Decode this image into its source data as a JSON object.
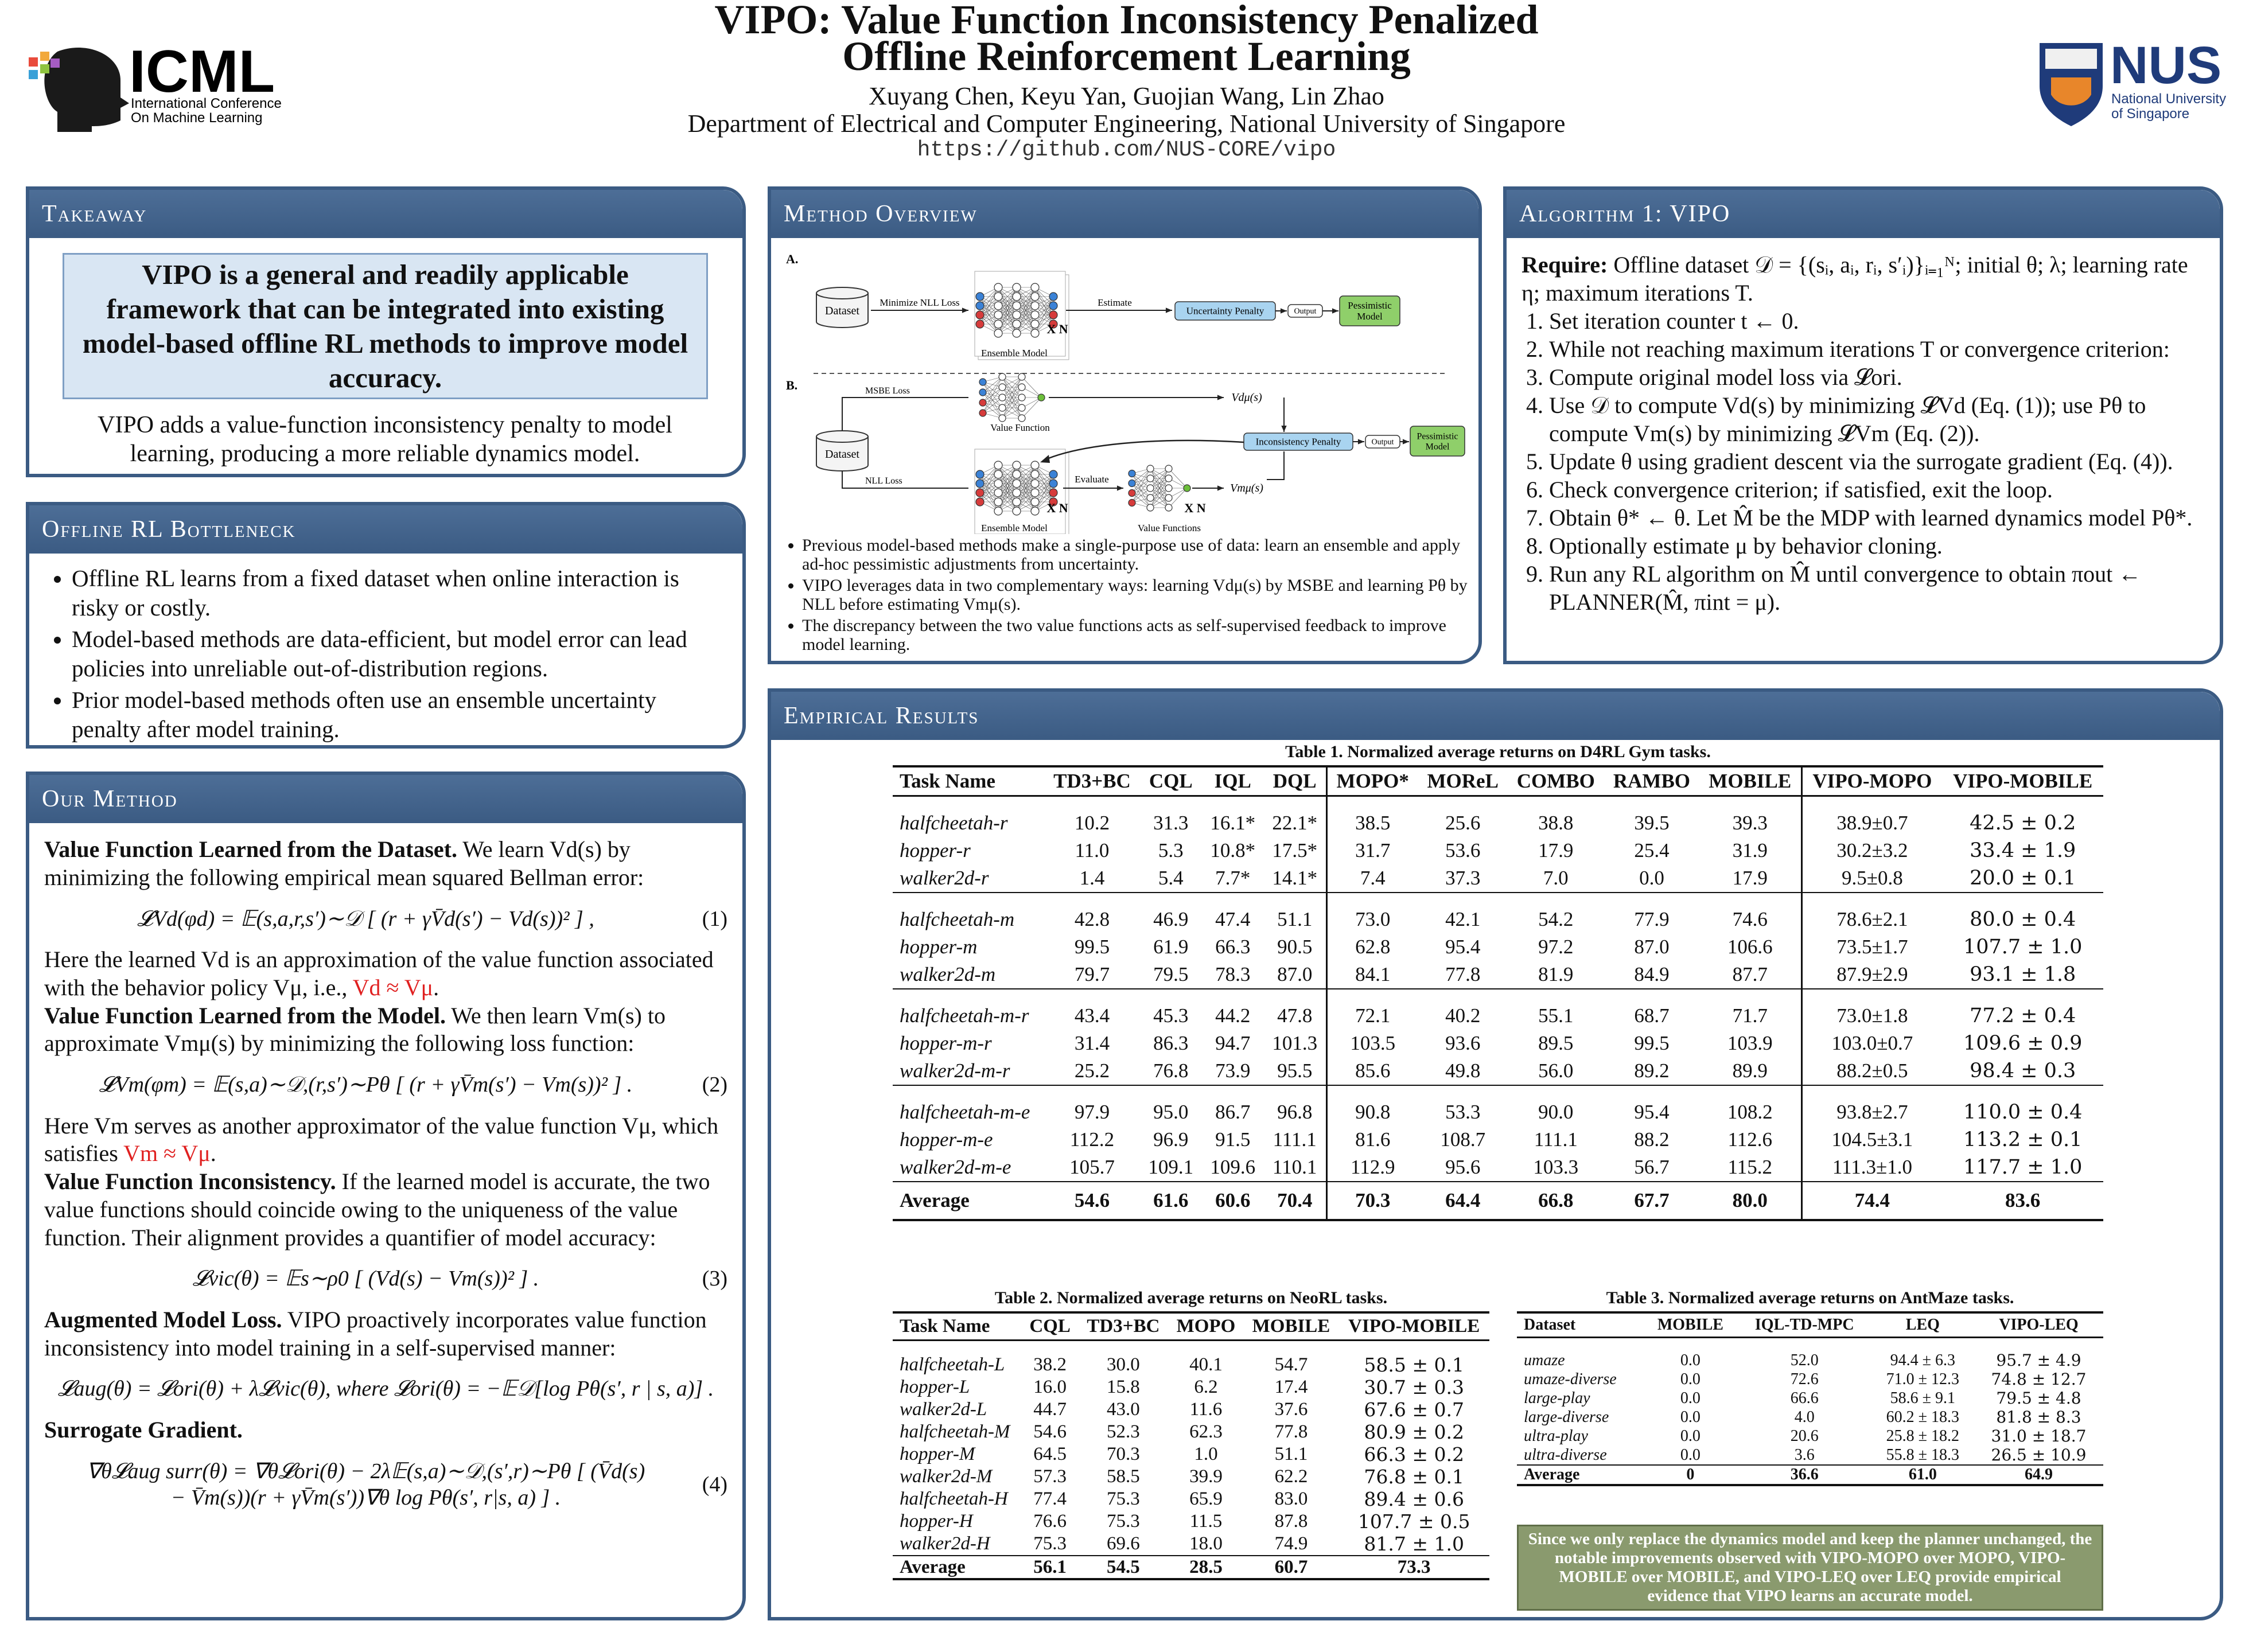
{
  "header": {
    "title": [
      "VIPO: Value Function Inconsistency Penalized",
      "Offline Reinforcement Learning"
    ],
    "authors": "Xuyang Chen, Keyu Yan, Guojian Wang, Lin Zhao",
    "affiliation": "Department of Electrical and Computer Engineering, National University of Singapore",
    "url": "https://github.com/NUS-CORE/vipo",
    "icml": {
      "name": "ICML",
      "sub": [
        "International Conference",
        "On Machine Learning"
      ]
    },
    "nus": {
      "name": "NUS",
      "sub": [
        "National University",
        "of Singapore"
      ]
    }
  },
  "takeaway": {
    "title": "Takeaway",
    "highlight": "VIPO is a general and readily applicable framework that can be integrated into existing model-based offline RL methods to improve model accuracy.",
    "text": "VIPO adds a value-function inconsistency penalty to model learning, producing a more reliable dynamics model."
  },
  "bottleneck": {
    "title": "Offline RL Bottleneck",
    "bullets": [
      "Offline RL learns from a fixed dataset when online interaction is risky or costly.",
      "Model-based methods are data-efficient, but model error can lead policies into unreliable out-of-distribution regions.",
      "Prior model-based methods often use an ensemble uncertainty penalty after model training."
    ]
  },
  "our_method": {
    "title": "Our Method",
    "blocks": [
      {
        "kind": "para",
        "segments": [
          {
            "text": "Value Function Learned from the Dataset.",
            "style": "bold"
          },
          {
            "text": " We learn Vd(s) by minimizing the following empirical mean squared Bellman error:",
            "style": "plain"
          }
        ]
      },
      {
        "kind": "equation",
        "lines": [
          "𝓛Vd(φd) = 𝔼(s,a,r,s′)∼𝒟 [ (r + γV̄d(s′) − Vd(s))² ] ,"
        ],
        "number": "(1)"
      },
      {
        "kind": "para",
        "segments": [
          {
            "text": "Here the learned Vd is an approximation of the value function associated with the behavior policy Vμ, i.e., ",
            "style": "plain"
          },
          {
            "text": "Vd ≈ Vμ",
            "style": "red"
          },
          {
            "text": ".",
            "style": "plain"
          }
        ]
      },
      {
        "kind": "para",
        "segments": [
          {
            "text": "Value Function Learned from the Model.",
            "style": "bold"
          },
          {
            "text": " We then learn Vm(s) to approximate Vmμ(s) by minimizing the following loss function:",
            "style": "plain"
          }
        ]
      },
      {
        "kind": "equation",
        "lines": [
          "𝓛Vm(φm) = 𝔼(s,a)∼𝒟,(r,s′)∼Pθ [ (r + γV̄m(s′) − Vm(s))² ] ."
        ],
        "number": "(2)"
      },
      {
        "kind": "para",
        "segments": [
          {
            "text": "Here Vm serves as another approximator of the value function Vμ, which satisfies ",
            "style": "plain"
          },
          {
            "text": "Vm ≈ Vμ",
            "style": "red"
          },
          {
            "text": ".",
            "style": "plain"
          }
        ]
      },
      {
        "kind": "para",
        "segments": [
          {
            "text": "Value Function Inconsistency.",
            "style": "bold"
          },
          {
            "text": " If the learned model is accurate, the two value functions should coincide owing to the uniqueness of the value function. Their alignment provides a quantifier of model accuracy:",
            "style": "plain"
          }
        ]
      },
      {
        "kind": "equation",
        "lines": [
          "𝓛vic(θ) = 𝔼s∼ρ0 [ (Vd(s) − Vm(s))² ] ."
        ],
        "number": "(3)"
      },
      {
        "kind": "para",
        "segments": [
          {
            "text": "Augmented Model Loss.",
            "style": "bold"
          },
          {
            "text": " VIPO proactively incorporates value function inconsistency into model training in a self-supervised manner:",
            "style": "plain"
          }
        ]
      },
      {
        "kind": "equation",
        "lines": [
          "𝓛aug(θ) = 𝓛ori(θ) + λ𝓛vic(θ),  where   𝓛ori(θ) = −𝔼𝒟[log Pθ(s′, r | s, a)] ."
        ]
      },
      {
        "kind": "para",
        "segments": [
          {
            "text": "Surrogate Gradient.",
            "style": "bold"
          }
        ]
      },
      {
        "kind": "equation",
        "lines": [
          "∇θ𝓛aug surr(θ) = ∇θ𝓛ori(θ) − 2λ𝔼(s,a)∼𝒟,(s′,r)∼Pθ [ (V̄d(s)",
          "− V̄m(s))(r + γV̄m(s′))∇θ log Pθ(s′, r|s, a) ] ."
        ],
        "number": "(4)"
      }
    ]
  },
  "method_overview": {
    "title": "Method Overview",
    "diagram": {
      "a_label": "A.",
      "b_label": "B.",
      "dataset": "Dataset",
      "nll_loss_a": "Minimize NLL Loss",
      "estimate": "Estimate",
      "uncertainty": "Uncertainty Penalty",
      "output": "Output",
      "pessimistic": [
        "Pessimistic",
        "Model"
      ],
      "ensemble": "Ensemble Model",
      "xn": "X N",
      "msbe": "MSBE Loss",
      "nll": "NLL Loss",
      "value_function": "Value Function",
      "vd": "Vdμ(s)",
      "inconsistency": "Inconsistency Penalty",
      "evaluate": "Evaluate",
      "value_functions": "Value Functions",
      "vm": "Vmμ(s)"
    },
    "bullets": [
      "Previous model-based methods make a single-purpose use of data: learn an ensemble and apply ad-hoc pessimistic adjustments from uncertainty.",
      "VIPO leverages data in two complementary ways: learning Vdμ(s) by MSBE and learning Pθ by NLL before estimating Vmμ(s).",
      "The discrepancy between the two value functions acts as self-supervised feedback to improve model learning."
    ]
  },
  "algorithm": {
    "title": "Algorithm 1: VIPO",
    "require": [
      {
        "text": "Require:",
        "style": "bold"
      },
      {
        "text": " Offline dataset 𝒟 = {(sᵢ, aᵢ, rᵢ, s′ᵢ)}ᵢ₌₁ᴺ; initial θ; λ; learning rate η; maximum iterations T.",
        "style": "plain"
      }
    ],
    "steps": [
      "Set iteration counter t ← 0.",
      "While not reaching maximum iterations T or convergence criterion:",
      "Compute original model loss via 𝓛ori.",
      "Use 𝒟 to compute Vd(s) by minimizing 𝓛Vd (Eq. (1)); use Pθ to compute Vm(s) by minimizing 𝓛Vm (Eq. (2)).",
      "Update θ using gradient descent via the surrogate gradient (Eq. (4)).",
      "Check convergence criterion; if satisfied, exit the loop.",
      "Obtain θ* ← θ. Let M̂ be the MDP with learned dynamics model Pθ*.",
      "Optionally estimate μ by behavior cloning.",
      "Run any RL algorithm on M̂ until convergence to obtain πout ← PLANNER(M̂, πint = μ)."
    ]
  },
  "empirical_results": {
    "title": "Empirical Results",
    "table1": {
      "caption": "Table 1. Normalized average returns on D4RL Gym tasks.",
      "columns": [
        "Task Name",
        "TD3+BC",
        "CQL",
        "IQL",
        "DQL",
        "MOPO*",
        "MOReL",
        "COMBO",
        "RAMBO",
        "MOBILE",
        "VIPO-MOPO",
        "VIPO-MOBILE"
      ],
      "groups": [
        [
          [
            "halfcheetah-r",
            "10.2",
            "31.3",
            "16.1*",
            "22.1*",
            "38.5",
            "25.6",
            "38.8",
            "39.5",
            "39.3",
            "38.9±0.7",
            "42.5 ± 0.2"
          ],
          [
            "hopper-r",
            "11.0",
            "5.3",
            "10.8*",
            "17.5*",
            "31.7",
            "53.6",
            "17.9",
            "25.4",
            "31.9",
            "30.2±3.2",
            "33.4 ± 1.9"
          ],
          [
            "walker2d-r",
            "1.4",
            "5.4",
            "7.7*",
            "14.1*",
            "7.4",
            "37.3",
            "7.0",
            "0.0",
            "17.9",
            "9.5±0.8",
            "20.0 ± 0.1"
          ]
        ],
        [
          [
            "halfcheetah-m",
            "42.8",
            "46.9",
            "47.4",
            "51.1",
            "73.0",
            "42.1",
            "54.2",
            "77.9",
            "74.6",
            "78.6±2.1",
            "80.0 ± 0.4"
          ],
          [
            "hopper-m",
            "99.5",
            "61.9",
            "66.3",
            "90.5",
            "62.8",
            "95.4",
            "97.2",
            "87.0",
            "106.6",
            "73.5±1.7",
            "107.7 ± 1.0"
          ],
          [
            "walker2d-m",
            "79.7",
            "79.5",
            "78.3",
            "87.0",
            "84.1",
            "77.8",
            "81.9",
            "84.9",
            "87.7",
            "87.9±2.9",
            "93.1 ± 1.8"
          ]
        ],
        [
          [
            "halfcheetah-m-r",
            "43.4",
            "45.3",
            "44.2",
            "47.8",
            "72.1",
            "40.2",
            "55.1",
            "68.7",
            "71.7",
            "73.0±1.8",
            "77.2 ± 0.4"
          ],
          [
            "hopper-m-r",
            "31.4",
            "86.3",
            "94.7",
            "101.3",
            "103.5",
            "93.6",
            "89.5",
            "99.5",
            "103.9",
            "103.0±0.7",
            "109.6 ± 0.9"
          ],
          [
            "walker2d-m-r",
            "25.2",
            "76.8",
            "73.9",
            "95.5",
            "85.6",
            "49.8",
            "56.0",
            "89.2",
            "89.9",
            "88.2±0.5",
            "98.4 ± 0.3"
          ]
        ],
        [
          [
            "halfcheetah-m-e",
            "97.9",
            "95.0",
            "86.7",
            "96.8",
            "90.8",
            "53.3",
            "90.0",
            "95.4",
            "108.2",
            "93.8±2.7",
            "110.0 ± 0.4"
          ],
          [
            "hopper-m-e",
            "112.2",
            "96.9",
            "91.5",
            "111.1",
            "81.6",
            "108.7",
            "111.1",
            "88.2",
            "112.6",
            "104.5±3.1",
            "113.2 ± 0.1"
          ],
          [
            "walker2d-m-e",
            "105.7",
            "109.1",
            "109.6",
            "110.1",
            "112.9",
            "95.6",
            "103.3",
            "56.7",
            "115.2",
            "111.3±1.0",
            "117.7 ± 1.0"
          ]
        ]
      ],
      "average": [
        "Average",
        "54.6",
        "61.6",
        "60.6",
        "70.4",
        "70.3",
        "64.4",
        "66.8",
        "67.7",
        "80.0",
        "74.4",
        "83.6"
      ]
    },
    "table2": {
      "caption": "Table 2. Normalized average returns on NeoRL tasks.",
      "columns": [
        "Task Name",
        "CQL",
        "TD3+BC",
        "MOPO",
        "MOBILE",
        "VIPO-MOBILE"
      ],
      "rows": [
        [
          "halfcheetah-L",
          "38.2",
          "30.0",
          "40.1",
          "54.7",
          "58.5 ± 0.1"
        ],
        [
          "hopper-L",
          "16.0",
          "15.8",
          "6.2",
          "17.4",
          "30.7 ± 0.3"
        ],
        [
          "walker2d-L",
          "44.7",
          "43.0",
          "11.6",
          "37.6",
          "67.6 ± 0.7"
        ],
        [
          "halfcheetah-M",
          "54.6",
          "52.3",
          "62.3",
          "77.8",
          "80.9 ± 0.2"
        ],
        [
          "hopper-M",
          "64.5",
          "70.3",
          "1.0",
          "51.1",
          "66.3 ± 0.2"
        ],
        [
          "walker2d-M",
          "57.3",
          "58.5",
          "39.9",
          "62.2",
          "76.8 ± 0.1"
        ],
        [
          "halfcheetah-H",
          "77.4",
          "75.3",
          "65.9",
          "83.0",
          "89.4 ± 0.6"
        ],
        [
          "hopper-H",
          "76.6",
          "75.3",
          "11.5",
          "87.8",
          "107.7 ± 0.5"
        ],
        [
          "walker2d-H",
          "75.3",
          "69.6",
          "18.0",
          "74.9",
          "81.7 ± 1.0"
        ]
      ],
      "average": [
        "Average",
        "56.1",
        "54.5",
        "28.5",
        "60.7",
        "73.3"
      ]
    },
    "table3": {
      "caption": "Table 3. Normalized average returns on AntMaze tasks.",
      "columns": [
        "Dataset",
        "MOBILE",
        "IQL-TD-MPC",
        "LEQ",
        "VIPO-LEQ"
      ],
      "rows": [
        [
          "umaze",
          "0.0",
          "52.0",
          "94.4 ± 6.3",
          "95.7 ± 4.9"
        ],
        [
          "umaze-diverse",
          "0.0",
          "72.6",
          "71.0 ± 12.3",
          "74.8 ± 12.7"
        ],
        [
          "large-play",
          "0.0",
          "66.6",
          "58.6 ± 9.1",
          "79.5 ± 4.8"
        ],
        [
          "large-diverse",
          "0.0",
          "4.0",
          "60.2 ± 18.3",
          "81.8 ± 8.3"
        ],
        [
          "ultra-play",
          "0.0",
          "20.6",
          "25.8 ± 18.2",
          "31.0 ± 18.7"
        ],
        [
          "ultra-diverse",
          "0.0",
          "3.6",
          "55.8 ± 18.3",
          "26.5 ± 10.9"
        ]
      ],
      "average": [
        "Average",
        "0",
        "36.6",
        "61.0",
        "64.9"
      ]
    },
    "note": "Since we only replace the dynamics model and keep the planner unchanged, the notable improvements observed with VIPO-MOPO over MOPO, VIPO-MOBILE over MOBILE, and VIPO-LEQ over LEQ provide empirical evidence that VIPO learns an accurate model."
  }
}
